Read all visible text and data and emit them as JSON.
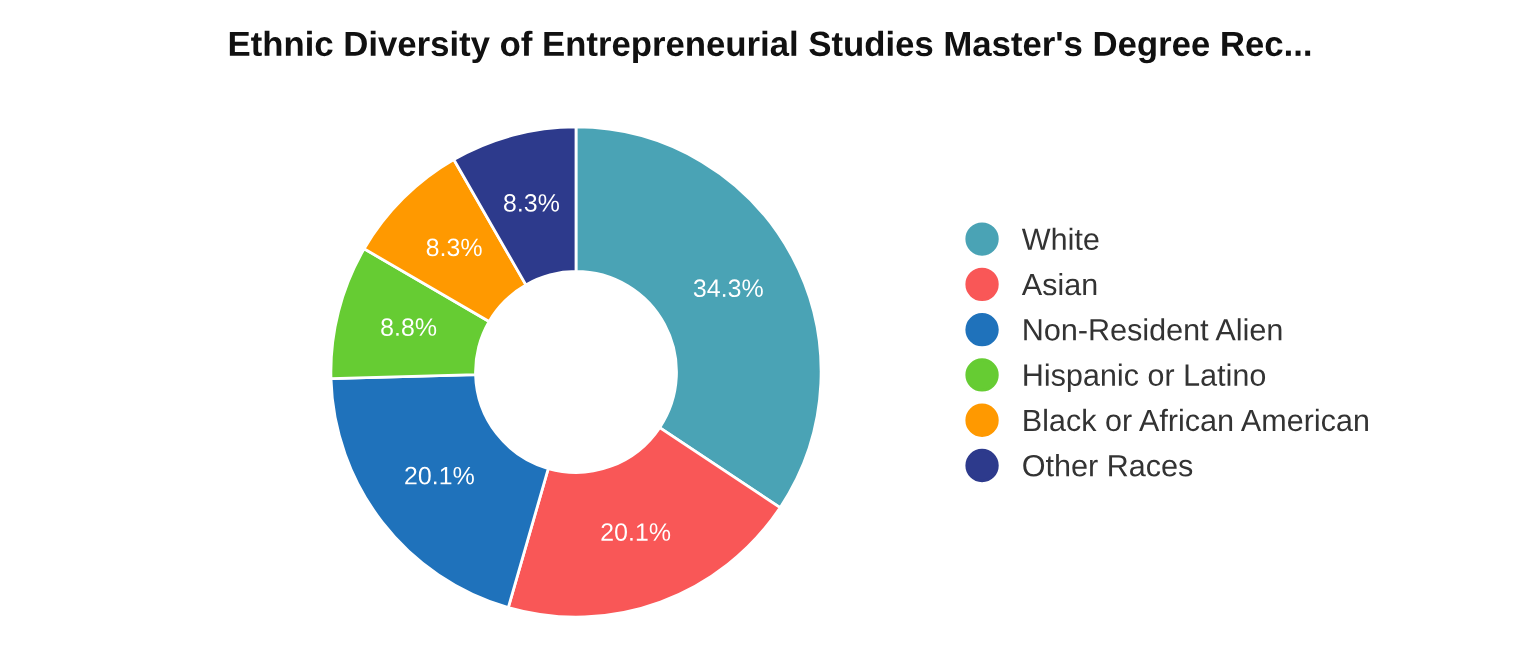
{
  "chart_data": {
    "type": "donut",
    "title": "Ethnic Diversity of Entrepreneurial Studies Master's Degree Rec...",
    "categories": [
      "White",
      "Asian",
      "Non-Resident Alien",
      "Hispanic or Latino",
      "Black or African American",
      "Other Races"
    ],
    "values": [
      34.3,
      20.1,
      20.1,
      8.8,
      8.3,
      8.3
    ],
    "value_labels": [
      "34.3%",
      "20.1%",
      "20.1%",
      "8.8%",
      "8.3%",
      "8.3%"
    ],
    "colors": [
      "#4aa3b5",
      "#f95757",
      "#1f72bb",
      "#66cc33",
      "#ff9900",
      "#2d3a8c"
    ],
    "legend": "right"
  }
}
